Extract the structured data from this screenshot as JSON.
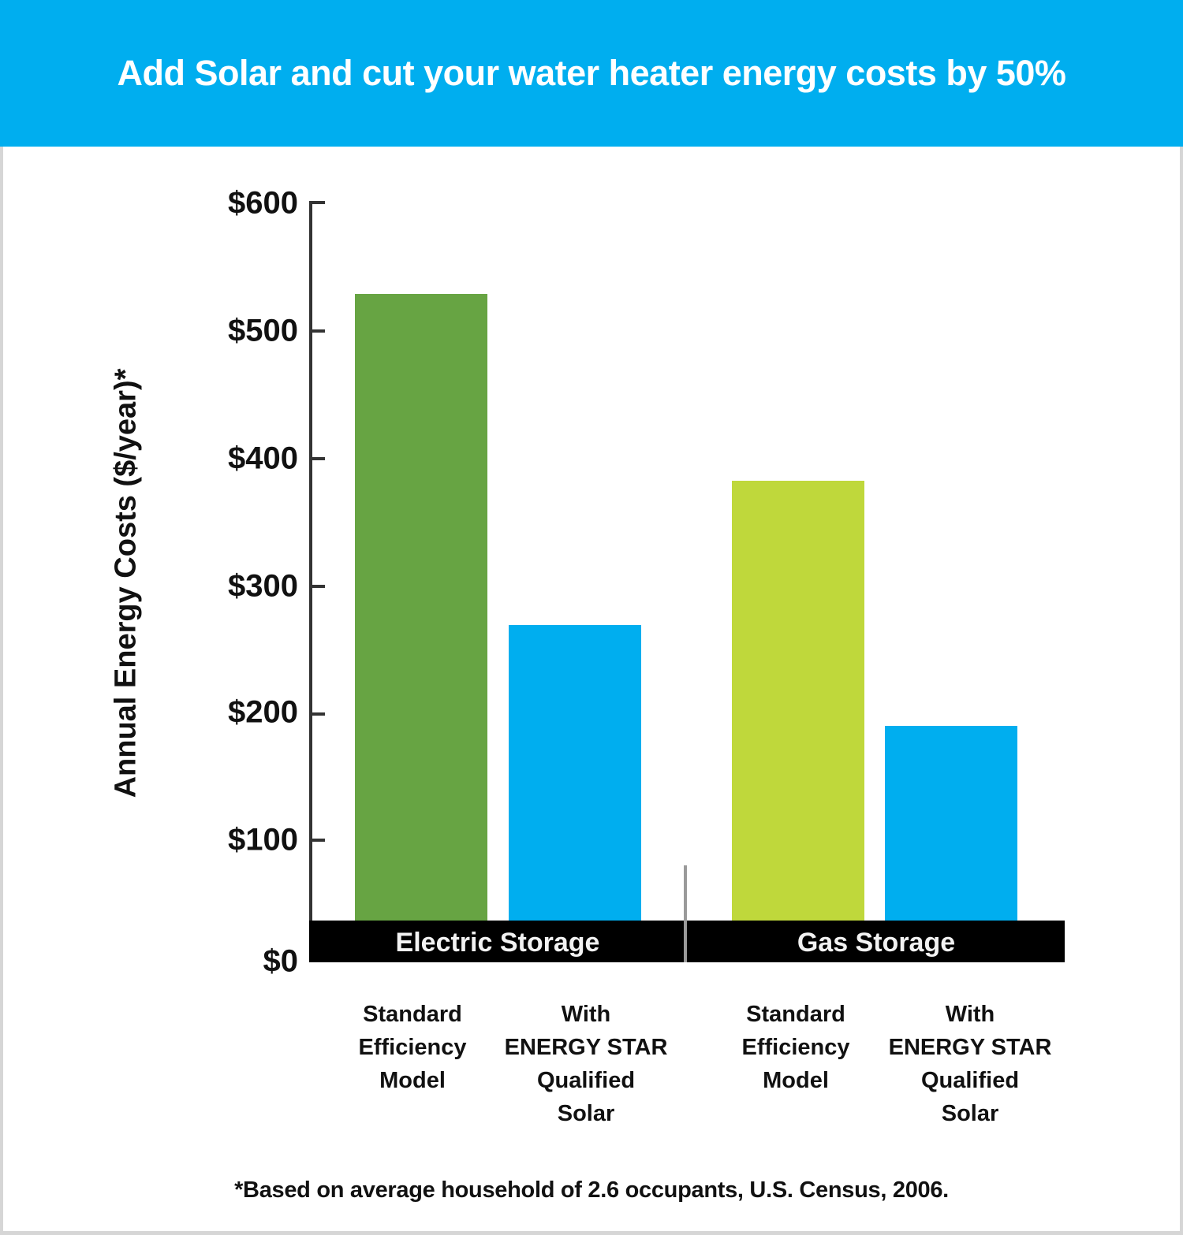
{
  "header": {
    "title": "Add Solar and cut your water heater energy costs by 50%"
  },
  "colors": {
    "header_bg": "#00AEEF",
    "electric_standard": "#67A443",
    "gas_standard": "#BFD83B",
    "solar": "#00AEEF",
    "band": "#000000"
  },
  "axis": {
    "ylabel": "Annual Energy Costs ($/year)*",
    "ticks": [
      "$600",
      "$500",
      "$400",
      "$300",
      "$200",
      "$100",
      "$0"
    ]
  },
  "groups": [
    {
      "label": "Electric Storage",
      "bars": [
        {
          "label": "Standard\nEfficiency\nModel",
          "value": 528
        },
        {
          "label": "With\nENERGY STAR\nQualified\nSolar",
          "value": 266
        }
      ]
    },
    {
      "label": "Gas Storage",
      "bars": [
        {
          "label": "Standard\nEfficiency\nModel",
          "value": 380
        },
        {
          "label": "With\nENERGY STAR\nQualified\nSolar",
          "value": 186
        }
      ]
    }
  ],
  "footnote": "*Based on average household of 2.6 occupants, U.S. Census, 2006.",
  "chart_data": {
    "type": "bar",
    "title": "Add Solar and cut your water heater energy costs by 50%",
    "xlabel": "",
    "ylabel": "Annual Energy Costs ($/year)*",
    "ylim": [
      0,
      600
    ],
    "yticks": [
      0,
      100,
      200,
      300,
      400,
      500,
      600
    ],
    "grid": false,
    "categories": [
      "Electric Storage - Standard Efficiency Model",
      "Electric Storage - With ENERGY STAR Qualified Solar",
      "Gas Storage - Standard Efficiency Model",
      "Gas Storage - With ENERGY STAR Qualified Solar"
    ],
    "groups": [
      "Electric Storage",
      "Gas Storage"
    ],
    "series": [
      {
        "name": "Standard Efficiency Model",
        "values": [
          528,
          380
        ]
      },
      {
        "name": "With ENERGY STAR Qualified Solar",
        "values": [
          266,
          186
        ]
      }
    ],
    "values": [
      528,
      266,
      380,
      186
    ],
    "bar_colors": [
      "#67A443",
      "#00AEEF",
      "#BFD83B",
      "#00AEEF"
    ],
    "annotations": [
      "*Based on average household of 2.6 occupants, U.S. Census, 2006."
    ]
  }
}
